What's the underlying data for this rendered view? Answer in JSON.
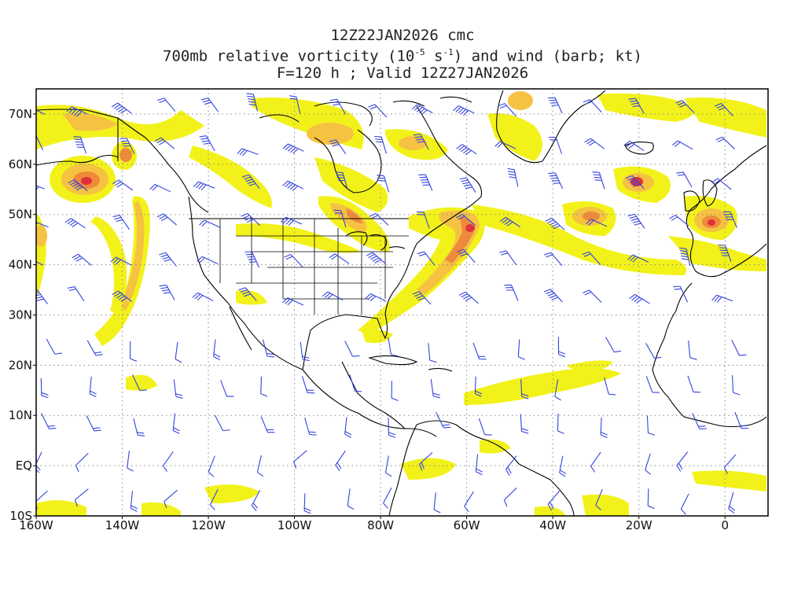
{
  "title": {
    "line1": "12Z22JAN2026 cmc",
    "line2_pre": "700mb relative vorticity (10",
    "line2_exp": "-5",
    "line2_mid": " s",
    "line2_exp2": "-1",
    "line2_post": ") and wind (barb; kt)",
    "line3": "F=120 h ; Valid 12Z27JAN2026"
  },
  "axes": {
    "lon_labels": [
      "160W",
      "140W",
      "120W",
      "100W",
      "80W",
      "60W",
      "40W",
      "20W",
      "0"
    ],
    "lon_values": [
      -160,
      -140,
      -120,
      -100,
      -80,
      -60,
      -40,
      -20,
      0
    ],
    "lat_labels": [
      "70N",
      "60N",
      "50N",
      "40N",
      "30N",
      "20N",
      "10N",
      "EQ",
      "10S"
    ],
    "lat_values": [
      70,
      60,
      50,
      40,
      30,
      20,
      10,
      0,
      -10
    ],
    "lon_range": [
      -160,
      10
    ],
    "lat_range": [
      -10,
      75
    ],
    "grid": "dotted"
  },
  "colors": {
    "shade_low": "#f2f21a",
    "shade_mid": "#f5c242",
    "shade_high": "#ef8a3a",
    "shade_max": "#e0303a",
    "coast": "#000000",
    "barb": "#3344dd",
    "grid": "#888888"
  }
}
